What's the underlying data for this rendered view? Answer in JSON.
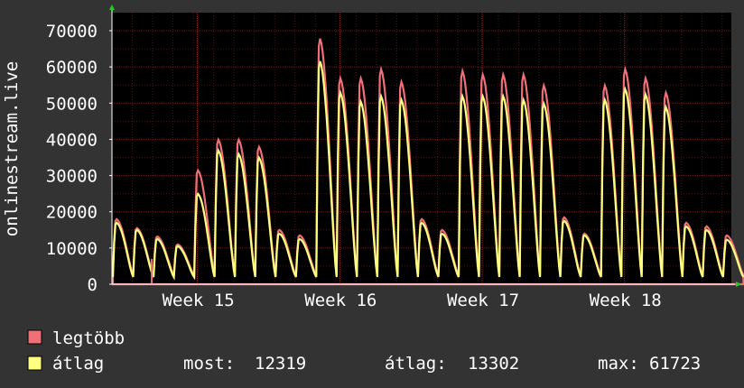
{
  "chart_data": {
    "type": "area",
    "ylabel": "onlinestream.live",
    "ylim": [
      0,
      70000
    ],
    "yticks": [
      0,
      10000,
      20000,
      30000,
      40000,
      50000,
      60000,
      70000
    ],
    "y_tick_labels": [
      "0",
      "10000",
      "20000",
      "30000",
      "40000",
      "50000",
      "60000",
      "70000"
    ],
    "x_tick_labels": [
      "Week 15",
      "Week 16",
      "Week 17",
      "Week 18"
    ],
    "x_range_weeks": [
      14.4,
      18.75
    ],
    "x_tick_positions_weeks": [
      15,
      16,
      17,
      18
    ],
    "grid": true,
    "background": "#000000",
    "grid_color": "#5a2020",
    "series": [
      {
        "name": "legtöbb",
        "color": "#f07078",
        "daily_peaks": [
          {
            "day": 0,
            "value": 18000
          },
          {
            "day": 1,
            "value": 15500
          },
          {
            "day": 2,
            "value": 13200
          },
          {
            "day": 3,
            "value": 11000
          },
          {
            "day": 4,
            "value": 31500
          },
          {
            "day": 5,
            "value": 40000
          },
          {
            "day": 6,
            "value": 40000
          },
          {
            "day": 7,
            "value": 38000
          },
          {
            "day": 8,
            "value": 15000
          },
          {
            "day": 9,
            "value": 13500
          },
          {
            "day": 10,
            "value": 68000
          },
          {
            "day": 11,
            "value": 57000
          },
          {
            "day": 12,
            "value": 57000
          },
          {
            "day": 13,
            "value": 59500
          },
          {
            "day": 14,
            "value": 56000
          },
          {
            "day": 15,
            "value": 18000
          },
          {
            "day": 16,
            "value": 15000
          },
          {
            "day": 17,
            "value": 59000
          },
          {
            "day": 18,
            "value": 58000
          },
          {
            "day": 19,
            "value": 58000
          },
          {
            "day": 20,
            "value": 58000
          },
          {
            "day": 21,
            "value": 55000
          },
          {
            "day": 22,
            "value": 18500
          },
          {
            "day": 23,
            "value": 14000
          },
          {
            "day": 24,
            "value": 55000
          },
          {
            "day": 25,
            "value": 59500
          },
          {
            "day": 26,
            "value": 57000
          },
          {
            "day": 27,
            "value": 53000
          },
          {
            "day": 28,
            "value": 17000
          },
          {
            "day": 29,
            "value": 16000
          },
          {
            "day": 30,
            "value": 13500
          }
        ]
      },
      {
        "name": "átlag",
        "color": "#ffff80",
        "daily_peaks": [
          {
            "day": 0,
            "value": 17000
          },
          {
            "day": 1,
            "value": 15000
          },
          {
            "day": 2,
            "value": 12500
          },
          {
            "day": 3,
            "value": 10500
          },
          {
            "day": 4,
            "value": 25000
          },
          {
            "day": 5,
            "value": 37000
          },
          {
            "day": 6,
            "value": 36000
          },
          {
            "day": 7,
            "value": 35000
          },
          {
            "day": 8,
            "value": 14000
          },
          {
            "day": 9,
            "value": 12500
          },
          {
            "day": 10,
            "value": 61723
          },
          {
            "day": 11,
            "value": 53000
          },
          {
            "day": 12,
            "value": 50500
          },
          {
            "day": 13,
            "value": 52000
          },
          {
            "day": 14,
            "value": 51000
          },
          {
            "day": 15,
            "value": 17000
          },
          {
            "day": 16,
            "value": 14000
          },
          {
            "day": 17,
            "value": 52000
          },
          {
            "day": 18,
            "value": 52000
          },
          {
            "day": 19,
            "value": 52000
          },
          {
            "day": 20,
            "value": 51000
          },
          {
            "day": 21,
            "value": 50000
          },
          {
            "day": 22,
            "value": 17500
          },
          {
            "day": 23,
            "value": 13500
          },
          {
            "day": 24,
            "value": 51000
          },
          {
            "day": 25,
            "value": 54000
          },
          {
            "day": 26,
            "value": 52500
          },
          {
            "day": 27,
            "value": 49000
          },
          {
            "day": 28,
            "value": 16000
          },
          {
            "day": 29,
            "value": 15000
          },
          {
            "day": 30,
            "value": 12319
          }
        ]
      }
    ],
    "gaps": [
      {
        "after_day": 1,
        "note_value": 7000
      }
    ],
    "legend": {
      "placement": "bottom-left",
      "entries": [
        {
          "label": "legtöbb",
          "color": "#f07078"
        },
        {
          "label": "átlag",
          "color": "#ffff80"
        }
      ]
    },
    "stats": [
      {
        "label": "most:",
        "value": "12319"
      },
      {
        "label": "átlag:",
        "value": "13302"
      },
      {
        "label": "max:",
        "value": "61723"
      }
    ]
  }
}
